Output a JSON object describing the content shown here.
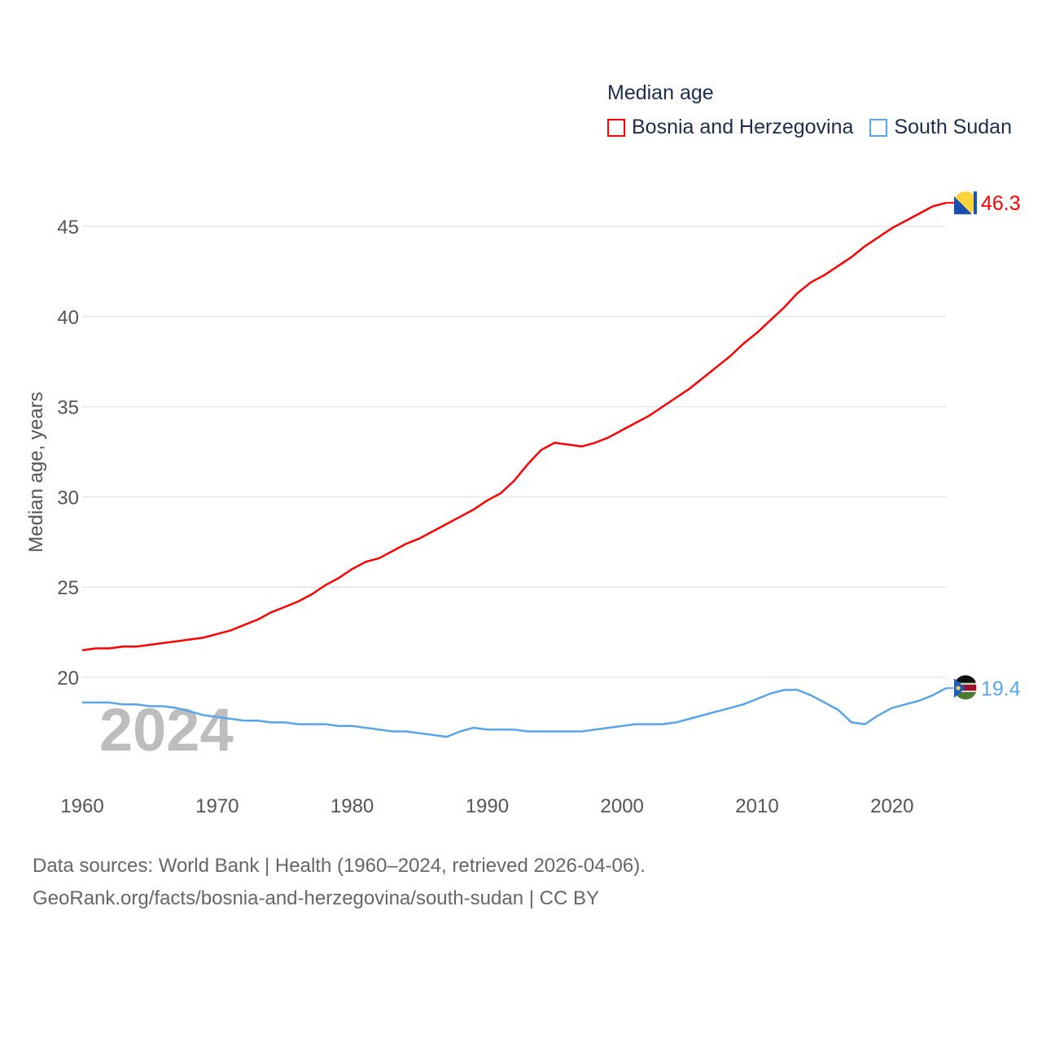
{
  "chart_data": {
    "type": "line",
    "title": "Median age",
    "ylabel": "Median age, years",
    "xlabel": "",
    "xlim": [
      1960,
      2024
    ],
    "ylim": [
      15,
      47
    ],
    "xticks": [
      1960,
      1970,
      1980,
      1990,
      2000,
      2010,
      2020
    ],
    "yticks": [
      20,
      25,
      30,
      35,
      40,
      45
    ],
    "grid": true,
    "legend_position": "top-right",
    "watermark_year": "2024",
    "x": [
      1960,
      1961,
      1962,
      1963,
      1964,
      1965,
      1966,
      1967,
      1968,
      1969,
      1970,
      1971,
      1972,
      1973,
      1974,
      1975,
      1976,
      1977,
      1978,
      1979,
      1980,
      1981,
      1982,
      1983,
      1984,
      1985,
      1986,
      1987,
      1988,
      1989,
      1990,
      1991,
      1992,
      1993,
      1994,
      1995,
      1996,
      1997,
      1998,
      1999,
      2000,
      2001,
      2002,
      2003,
      2004,
      2005,
      2006,
      2007,
      2008,
      2009,
      2010,
      2011,
      2012,
      2013,
      2014,
      2015,
      2016,
      2017,
      2018,
      2019,
      2020,
      2021,
      2022,
      2023,
      2024
    ],
    "series": [
      {
        "name": "Bosnia and Herzegovina",
        "color": "#ff0000",
        "end_label": "46.3",
        "values": [
          21.5,
          21.6,
          21.6,
          21.7,
          21.7,
          21.8,
          21.9,
          22.0,
          22.1,
          22.2,
          22.4,
          22.6,
          22.9,
          23.2,
          23.6,
          23.9,
          24.2,
          24.6,
          25.1,
          25.5,
          26.0,
          26.4,
          26.6,
          27.0,
          27.4,
          27.7,
          28.1,
          28.5,
          28.9,
          29.3,
          29.8,
          30.2,
          30.9,
          31.8,
          32.6,
          33.0,
          32.9,
          32.8,
          33.0,
          33.3,
          33.7,
          34.1,
          34.5,
          35.0,
          35.5,
          36.0,
          36.6,
          37.2,
          37.8,
          38.5,
          39.1,
          39.8,
          40.5,
          41.3,
          41.9,
          42.3,
          42.8,
          43.3,
          43.9,
          44.4,
          44.9,
          45.3,
          45.7,
          46.1,
          46.3
        ]
      },
      {
        "name": "South Sudan",
        "color": "#5aa5ea",
        "end_label": "19.4",
        "values": [
          18.6,
          18.6,
          18.6,
          18.5,
          18.5,
          18.4,
          18.4,
          18.3,
          18.1,
          17.9,
          17.8,
          17.7,
          17.6,
          17.6,
          17.5,
          17.5,
          17.4,
          17.4,
          17.4,
          17.3,
          17.3,
          17.2,
          17.1,
          17.0,
          17.0,
          16.9,
          16.8,
          16.7,
          17.0,
          17.2,
          17.1,
          17.1,
          17.1,
          17.0,
          17.0,
          17.0,
          17.0,
          17.0,
          17.1,
          17.2,
          17.3,
          17.4,
          17.4,
          17.4,
          17.5,
          17.7,
          17.9,
          18.1,
          18.3,
          18.5,
          18.8,
          19.1,
          19.3,
          19.3,
          19.0,
          18.6,
          18.2,
          17.5,
          17.4,
          17.9,
          18.3,
          18.5,
          18.7,
          19.0,
          19.4
        ]
      }
    ]
  },
  "footer": {
    "line1": "Data sources: World Bank | Health (1960–2024, retrieved 2026-04-06).",
    "line2": "GeoRank.org/facts/bosnia-and-herzegovina/south-sudan | CC BY"
  }
}
